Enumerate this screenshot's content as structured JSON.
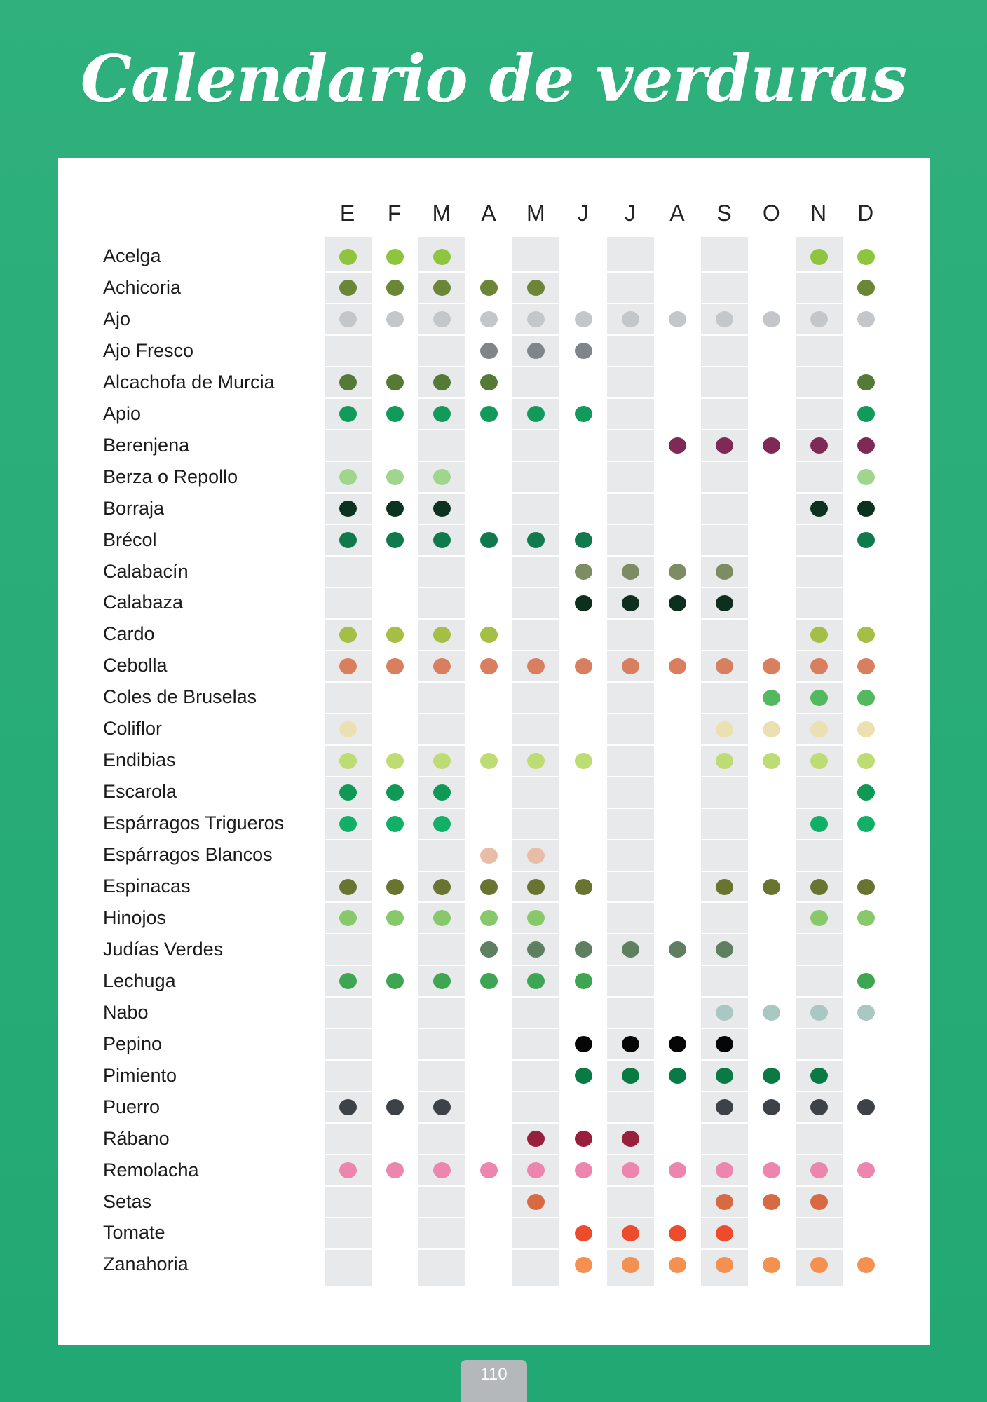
{
  "title": "Calendario de verduras",
  "page_number": "110",
  "months": [
    "E",
    "F",
    "M",
    "A",
    "M",
    "J",
    "J",
    "A",
    "S",
    "O",
    "N",
    "D"
  ],
  "vegetables": [
    {
      "name": "Acelga",
      "color": "#8fc43f",
      "months": [
        1,
        1,
        1,
        0,
        0,
        0,
        0,
        0,
        0,
        0,
        1,
        1
      ]
    },
    {
      "name": "Achicoria",
      "color": "#6b8637",
      "months": [
        1,
        1,
        1,
        1,
        1,
        0,
        0,
        0,
        0,
        0,
        0,
        1
      ]
    },
    {
      "name": "Ajo",
      "color": "#c3c7ca",
      "months": [
        1,
        1,
        1,
        1,
        1,
        1,
        1,
        1,
        1,
        1,
        1,
        1
      ]
    },
    {
      "name": "Ajo Fresco",
      "color": "#7e868b",
      "months": [
        0,
        0,
        0,
        1,
        1,
        1,
        0,
        0,
        0,
        0,
        0,
        0
      ]
    },
    {
      "name": "Alcachofa de Murcia",
      "color": "#547a36",
      "months": [
        1,
        1,
        1,
        1,
        0,
        0,
        0,
        0,
        0,
        0,
        0,
        1
      ]
    },
    {
      "name": "Apio",
      "color": "#129a5a",
      "months": [
        1,
        1,
        1,
        1,
        1,
        1,
        0,
        0,
        0,
        0,
        0,
        1
      ]
    },
    {
      "name": "Berenjena",
      "color": "#7e2a55",
      "months": [
        0,
        0,
        0,
        0,
        0,
        0,
        0,
        1,
        1,
        1,
        1,
        1
      ]
    },
    {
      "name": "Berza o Repollo",
      "color": "#9fd58c",
      "months": [
        1,
        1,
        1,
        0,
        0,
        0,
        0,
        0,
        0,
        0,
        0,
        1
      ]
    },
    {
      "name": "Borraja",
      "color": "#0c3321",
      "months": [
        1,
        1,
        1,
        0,
        0,
        0,
        0,
        0,
        0,
        0,
        1,
        1
      ]
    },
    {
      "name": "Brécol",
      "color": "#107a4d",
      "months": [
        1,
        1,
        1,
        1,
        1,
        1,
        0,
        0,
        0,
        0,
        0,
        1
      ]
    },
    {
      "name": "Calabacín",
      "color": "#7d8c62",
      "months": [
        0,
        0,
        0,
        0,
        0,
        1,
        1,
        1,
        1,
        0,
        0,
        0
      ]
    },
    {
      "name": "Calabaza",
      "color": "#0d2f1d",
      "months": [
        0,
        0,
        0,
        0,
        0,
        1,
        1,
        1,
        1,
        0,
        0,
        0
      ]
    },
    {
      "name": "Cardo",
      "color": "#a5be45",
      "months": [
        1,
        1,
        1,
        1,
        0,
        0,
        0,
        0,
        0,
        0,
        1,
        1
      ]
    },
    {
      "name": "Cebolla",
      "color": "#d77f5f",
      "months": [
        1,
        1,
        1,
        1,
        1,
        1,
        1,
        1,
        1,
        1,
        1,
        1
      ]
    },
    {
      "name": "Coles de Bruselas",
      "color": "#53b95f",
      "months": [
        0,
        0,
        0,
        0,
        0,
        0,
        0,
        0,
        0,
        1,
        1,
        1
      ]
    },
    {
      "name": "Coliflor",
      "color": "#ebe0b1",
      "months": [
        1,
        0,
        0,
        0,
        0,
        0,
        0,
        0,
        1,
        1,
        1,
        1
      ]
    },
    {
      "name": "Endibias",
      "color": "#bddc73",
      "months": [
        1,
        1,
        1,
        1,
        1,
        1,
        0,
        0,
        1,
        1,
        1,
        1
      ]
    },
    {
      "name": "Escarola",
      "color": "#0e9a55",
      "months": [
        1,
        1,
        1,
        0,
        0,
        0,
        0,
        0,
        0,
        0,
        0,
        1
      ]
    },
    {
      "name": "Espárragos Trigueros",
      "color": "#12b066",
      "months": [
        1,
        1,
        1,
        0,
        0,
        0,
        0,
        0,
        0,
        0,
        1,
        1
      ]
    },
    {
      "name": "Espárragos Blancos",
      "color": "#e8bca7",
      "months": [
        0,
        0,
        0,
        1,
        1,
        0,
        0,
        0,
        0,
        0,
        0,
        0
      ]
    },
    {
      "name": "Espinacas",
      "color": "#6a7431",
      "months": [
        1,
        1,
        1,
        1,
        1,
        1,
        0,
        0,
        1,
        1,
        1,
        1
      ]
    },
    {
      "name": "Hinojos",
      "color": "#87c86b",
      "months": [
        1,
        1,
        1,
        1,
        1,
        0,
        0,
        0,
        0,
        0,
        1,
        1
      ]
    },
    {
      "name": "Judías Verdes",
      "color": "#5f7f61",
      "months": [
        0,
        0,
        0,
        1,
        1,
        1,
        1,
        1,
        1,
        0,
        0,
        0
      ]
    },
    {
      "name": "Lechuga",
      "color": "#3ea653",
      "months": [
        1,
        1,
        1,
        1,
        1,
        1,
        0,
        0,
        0,
        0,
        0,
        1
      ]
    },
    {
      "name": "Nabo",
      "color": "#a9c8c4",
      "months": [
        0,
        0,
        0,
        0,
        0,
        0,
        0,
        0,
        1,
        1,
        1,
        1
      ]
    },
    {
      "name": "Pepino",
      "color": "#060606",
      "months": [
        0,
        0,
        0,
        0,
        0,
        1,
        1,
        1,
        1,
        0,
        0,
        0
      ]
    },
    {
      "name": "Pimiento",
      "color": "#0a7a45",
      "months": [
        0,
        0,
        0,
        0,
        0,
        1,
        1,
        1,
        1,
        1,
        1,
        0
      ]
    },
    {
      "name": "Puerro",
      "color": "#3c4248",
      "months": [
        1,
        1,
        1,
        0,
        0,
        0,
        0,
        0,
        1,
        1,
        1,
        1
      ]
    },
    {
      "name": "Rábano",
      "color": "#98203d",
      "months": [
        0,
        0,
        0,
        0,
        1,
        1,
        1,
        0,
        0,
        0,
        0,
        0
      ]
    },
    {
      "name": "Remolacha",
      "color": "#ec86ae",
      "months": [
        1,
        1,
        1,
        1,
        1,
        1,
        1,
        1,
        1,
        1,
        1,
        1
      ]
    },
    {
      "name": "Setas",
      "color": "#d76a43",
      "months": [
        0,
        0,
        0,
        0,
        1,
        0,
        0,
        0,
        1,
        1,
        1,
        0
      ]
    },
    {
      "name": "Tomate",
      "color": "#ec4b2c",
      "months": [
        0,
        0,
        0,
        0,
        0,
        1,
        1,
        1,
        1,
        0,
        0,
        0
      ]
    },
    {
      "name": "Zanahoria",
      "color": "#f49151",
      "months": [
        0,
        0,
        0,
        0,
        0,
        1,
        1,
        1,
        1,
        1,
        1,
        1
      ]
    }
  ]
}
